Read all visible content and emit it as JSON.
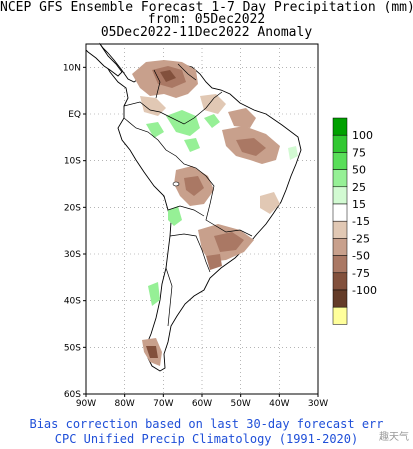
{
  "title": {
    "line1": "NCEP GFS Ensemble Forecast 1-7 Day Precipitation (mm)",
    "line2": "from: 05Dec2022",
    "line3": "05Dec2022-11Dec2022 Anomaly"
  },
  "map": {
    "lat_ticks": [
      "10N",
      "EQ",
      "10S",
      "20S",
      "30S",
      "40S",
      "50S",
      "60S"
    ],
    "lon_ticks": [
      "90W",
      "80W",
      "70W",
      "60W",
      "50W",
      "40W",
      "30W"
    ],
    "extent": {
      "lon": [
        -90,
        -30
      ],
      "lat": [
        -60,
        15
      ]
    },
    "grid": "dotted"
  },
  "legend": {
    "labels": [
      "100",
      "75",
      "50",
      "25",
      "15",
      "-15",
      "-25",
      "-50",
      "-75",
      "-100"
    ],
    "colors": [
      "#00a000",
      "#32c832",
      "#5ade5a",
      "#96f096",
      "#d2fad2",
      "#ffffff",
      "#e1c8b4",
      "#c8a08c",
      "#aa7864",
      "#82503c",
      "#643c28",
      "#ffff9b"
    ]
  },
  "footer": {
    "line1": "Bias correction based on last 30-day forecast err",
    "line2": "CPC Unified Precip Climatology (1991-2020)",
    "watermark": "趣天气"
  }
}
